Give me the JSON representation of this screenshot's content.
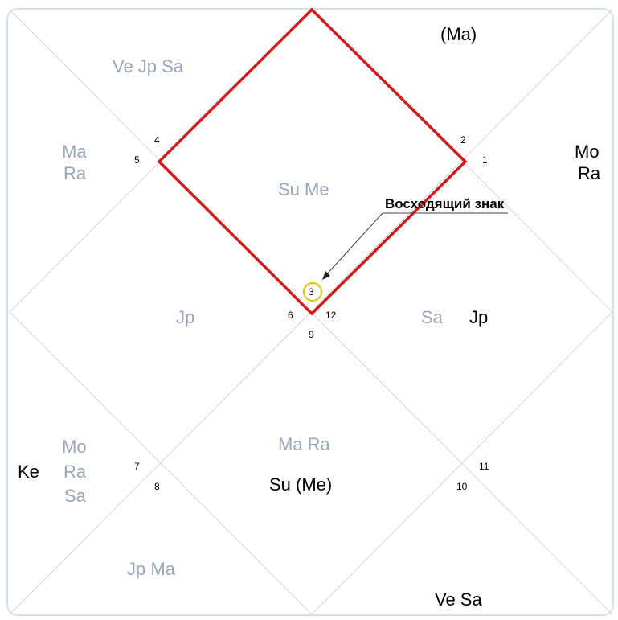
{
  "colors": {
    "grid": "#d6d6d6",
    "frame": "#d9dfe8",
    "highlight": "#d01c1c",
    "ascendant_ring": "#e6c21a",
    "planet_dark": "#000000",
    "planet_light": "#9aa6b8"
  },
  "callout": {
    "label": "Восходящий знак"
  },
  "house_numbers": [
    "1",
    "2",
    "3",
    "4",
    "5",
    "6",
    "7",
    "8",
    "9",
    "10",
    "11",
    "12"
  ],
  "planets": {
    "top_right": "(Ma)",
    "top_left": "Ve Jp Sa",
    "left_upper_1": "Ma",
    "left_upper_2": "Ra",
    "right_upper_1": "Mo",
    "right_upper_2": "Ra",
    "center_top": "Su Me",
    "center_left": "Jp",
    "center_right_light": "Sa",
    "center_right_dark": "Jp",
    "center_bottom_1": "Ma Ra",
    "center_bottom_2": "Su (Me)",
    "left_lower_dark": "Ke",
    "left_lower_1": "Mo",
    "left_lower_2": "Ra",
    "left_lower_3": "Sa",
    "bottom_left": "Jp Ma",
    "bottom_right": "Ve Sa"
  }
}
